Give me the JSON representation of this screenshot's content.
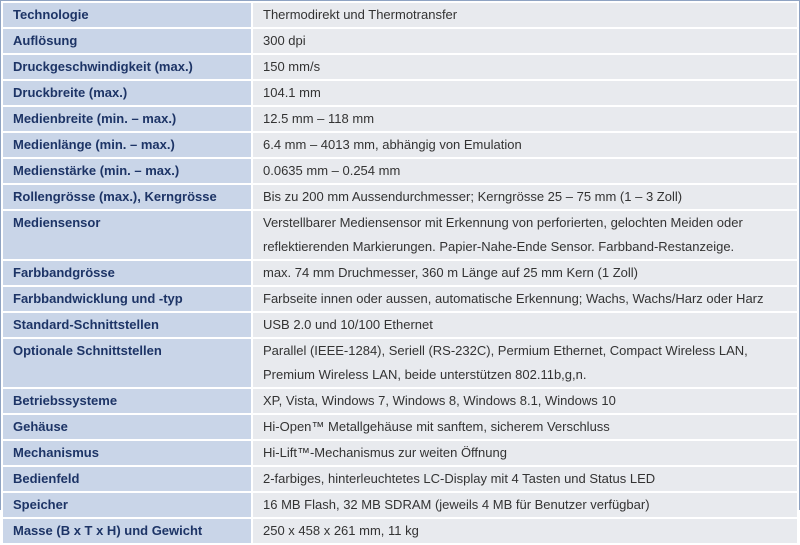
{
  "table": {
    "rows": [
      {
        "label": "Technologie",
        "lines": [
          "Thermodirekt und Thermotransfer"
        ]
      },
      {
        "label": "Auflösung",
        "lines": [
          "300 dpi"
        ]
      },
      {
        "label": "Druckgeschwindigkeit (max.)",
        "lines": [
          "150 mm/s"
        ]
      },
      {
        "label": "Druckbreite (max.)",
        "lines": [
          "104.1 mm"
        ]
      },
      {
        "label": "Medienbreite (min. – max.)",
        "lines": [
          "12.5 mm – 118 mm"
        ]
      },
      {
        "label": "Medienlänge (min. – max.)",
        "lines": [
          "6.4 mm – 4013 mm, abhängig von Emulation"
        ]
      },
      {
        "label": "Medienstärke (min. – max.)",
        "lines": [
          "0.0635 mm – 0.254 mm"
        ]
      },
      {
        "label": "Rollengrösse (max.), Kerngrösse",
        "lines": [
          "Bis zu 200 mm Aussendurchmesser; Kerngrösse 25 – 75 mm (1 – 3 Zoll)"
        ]
      },
      {
        "label": "Mediensensor",
        "lines": [
          "Verstellbarer Mediensensor mit Erkennung von perforierten, gelochten Meiden oder",
          "reflektierenden Markierungen. Papier-Nahe-Ende Sensor. Farbband-Restanzeige."
        ]
      },
      {
        "label": "Farbbandgrösse",
        "lines": [
          "max. 74 mm Druchmesser, 360 m Länge auf 25 mm Kern (1 Zoll)"
        ]
      },
      {
        "label": "Farbbandwicklung und -typ",
        "lines": [
          "Farbseite innen oder aussen, automatische Erkennung; Wachs, Wachs/Harz oder Harz"
        ]
      },
      {
        "label": "Standard-Schnittstellen",
        "lines": [
          "USB 2.0 und 10/100 Ethernet"
        ]
      },
      {
        "label": "Optionale Schnittstellen",
        "lines": [
          "Parallel (IEEE-1284), Seriell (RS-232C), Permium Ethernet, Compact Wireless LAN,",
          "Premium Wireless LAN, beide unterstützen 802.11b,g,n."
        ]
      },
      {
        "label": "Betriebssysteme",
        "lines": [
          "XP, Vista, Windows 7, Windows 8, Windows 8.1, Windows 10"
        ]
      },
      {
        "label": "Gehäuse",
        "lines": [
          "Hi-Open™ Metallgehäuse mit sanftem, sicherem Verschluss"
        ]
      },
      {
        "label": "Mechanismus",
        "lines": [
          "Hi-Lift™-Mechanismus zur weiten Öffnung"
        ]
      },
      {
        "label": "Bedienfeld",
        "lines": [
          "2-farbiges, hinterleuchtetes LC-Display mit 4 Tasten und Status LED"
        ]
      },
      {
        "label": "Speicher",
        "lines": [
          "16 MB Flash, 32 MB SDRAM (jeweils 4 MB für Benutzer verfügbar)"
        ]
      },
      {
        "label": "Masse (B x T x H) und Gewicht",
        "lines": [
          "250 x 458 x 261 mm, 11 kg"
        ]
      }
    ]
  }
}
